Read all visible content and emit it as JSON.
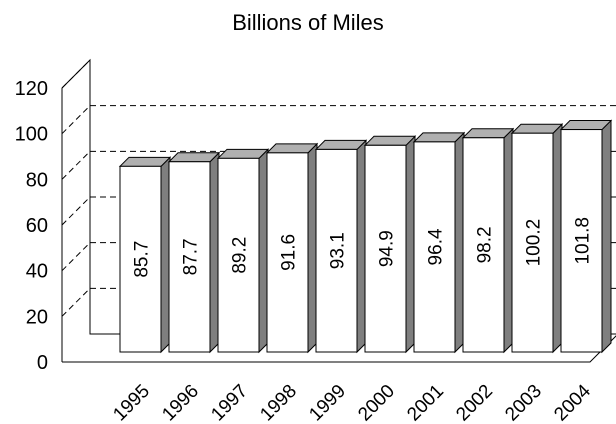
{
  "colors": {
    "bar_face": "#ffffff",
    "bar_top": "#b0b0b0",
    "bar_side": "#7f7f7f",
    "stroke": "#000000",
    "gridline": "#000000"
  },
  "chart_data": {
    "type": "bar",
    "title": "Billions of Miles",
    "xlabel": "",
    "ylabel": "",
    "categories": [
      "1995",
      "1996",
      "1997",
      "1998",
      "1999",
      "2000",
      "2001",
      "2002",
      "2003",
      "2004"
    ],
    "values": [
      85.7,
      87.7,
      89.2,
      91.6,
      93.1,
      94.9,
      96.4,
      98.2,
      100.2,
      101.8
    ],
    "data_labels": [
      "85.7",
      "87.7",
      "89.2",
      "91.6",
      "93.1",
      "94.9",
      "96.4",
      "98.2",
      "100.2",
      "101.8"
    ],
    "ylim": [
      0,
      120
    ],
    "yticks": [
      "0",
      "20",
      "40",
      "60",
      "80",
      "100",
      "120"
    ],
    "grid": true,
    "style": "3d"
  }
}
